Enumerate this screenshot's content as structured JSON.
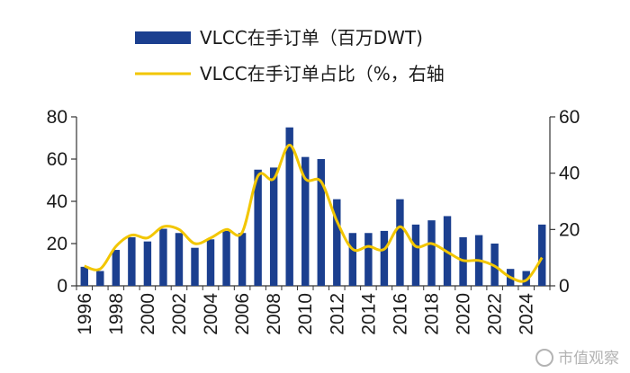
{
  "chart_data": {
    "type": "bar",
    "x": [
      "1996",
      "1997",
      "1998",
      "1999",
      "2000",
      "2001",
      "2002",
      "2003",
      "2004",
      "2005",
      "2006",
      "2007",
      "2008",
      "2009",
      "2010",
      "2011",
      "2012",
      "2013",
      "2014",
      "2015",
      "2016",
      "2017",
      "2018",
      "2019",
      "2020",
      "2021",
      "2022",
      "2023",
      "2024",
      "2025"
    ],
    "x_tick_labels": [
      "1996",
      "1998",
      "2000",
      "2002",
      "2004",
      "2006",
      "2008",
      "2010",
      "2012",
      "2014",
      "2016",
      "2018",
      "2020",
      "2022",
      "2024"
    ],
    "series": [
      {
        "name": "VLCC在手订单（百万DWT)",
        "kind": "bar",
        "axis": "left",
        "color": "#1b3f8f",
        "values": [
          9,
          7,
          17,
          23,
          21,
          27,
          25,
          18,
          22,
          26,
          25,
          55,
          56,
          75,
          61,
          60,
          41,
          25,
          25,
          26,
          41,
          29,
          31,
          33,
          23,
          24,
          20,
          8,
          7,
          29
        ]
      },
      {
        "name": "VLCC在手订单占比（%，右轴",
        "kind": "line",
        "axis": "right",
        "color": "#f2c600",
        "values": [
          7,
          6,
          14,
          18,
          17,
          21,
          20,
          15,
          17,
          20,
          19,
          39,
          38,
          50,
          38,
          37,
          23,
          13,
          14,
          13,
          21,
          14,
          15,
          12,
          9,
          9,
          7,
          3,
          2,
          10
        ]
      }
    ],
    "y_left": {
      "ylim": [
        0,
        80
      ],
      "ticks": [
        "0",
        "20",
        "40",
        "60",
        "80"
      ]
    },
    "y_right": {
      "ylim": [
        0,
        60
      ],
      "ticks": [
        "0",
        "20",
        "40",
        "60"
      ]
    },
    "legend_position": "top-center",
    "grid": false
  },
  "watermark": {
    "text": "市值观察"
  }
}
